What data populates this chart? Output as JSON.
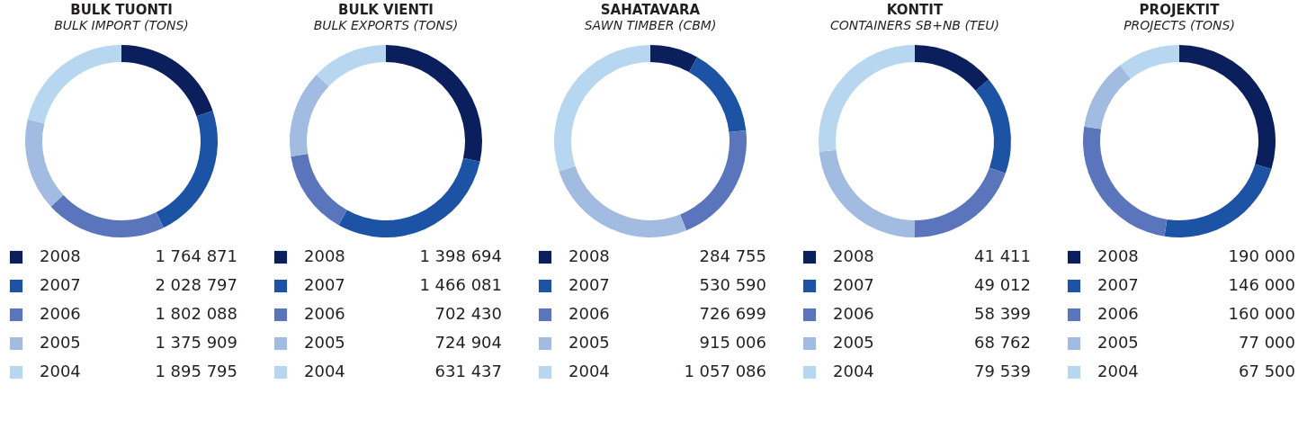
{
  "chart_data": [
    {
      "type": "donut",
      "title": "BULK TUONTI",
      "subtitle": "BULK IMPORT (TONS)",
      "categories": [
        "2008",
        "2007",
        "2006",
        "2005",
        "2004"
      ],
      "values": [
        1764871,
        2028797,
        1802088,
        1375909,
        1895795
      ],
      "value_labels": [
        "1 764 871",
        "2 028 797",
        "1 802 088",
        "1 375 909",
        "1 895 795"
      ],
      "colors": [
        "#0b1f5c",
        "#1c53a5",
        "#5a75bb",
        "#a2bbe0",
        "#b7d6ef"
      ],
      "legend": "bottom"
    },
    {
      "type": "donut",
      "title": "BULK VIENTI",
      "subtitle": "BULK EXPORTS (TONS)",
      "categories": [
        "2008",
        "2007",
        "2006",
        "2005",
        "2004"
      ],
      "values": [
        1398694,
        1466081,
        702430,
        724904,
        631437
      ],
      "value_labels": [
        "1 398 694",
        "1 466 081",
        "702 430",
        "724 904",
        "631 437"
      ],
      "colors": [
        "#0b1f5c",
        "#1c53a5",
        "#5a75bb",
        "#a2bbe0",
        "#b7d6ef"
      ],
      "legend": "bottom"
    },
    {
      "type": "donut",
      "title": "SAHATAVARA",
      "subtitle": "SAWN TIMBER (CBM)",
      "categories": [
        "2008",
        "2007",
        "2006",
        "2005",
        "2004"
      ],
      "values": [
        284755,
        530590,
        726699,
        915006,
        1057086
      ],
      "value_labels": [
        "284 755",
        "530 590",
        "726 699",
        "915 006",
        "1 057 086"
      ],
      "colors": [
        "#0b1f5c",
        "#1c53a5",
        "#5a75bb",
        "#a2bbe0",
        "#b7d6ef"
      ],
      "legend": "bottom"
    },
    {
      "type": "donut",
      "title": "KONTIT",
      "subtitle": "CONTAINERS SB+NB (TEU)",
      "categories": [
        "2008",
        "2007",
        "2006",
        "2005",
        "2004"
      ],
      "values": [
        41411,
        49012,
        58399,
        68762,
        79539
      ],
      "value_labels": [
        "41 411",
        "49 012",
        "58 399",
        "68 762",
        "79 539"
      ],
      "colors": [
        "#0b1f5c",
        "#1c53a5",
        "#5a75bb",
        "#a2bbe0",
        "#b7d6ef"
      ],
      "legend": "bottom"
    },
    {
      "type": "donut",
      "title": "PROJEKTIT",
      "subtitle": "PROJECTS (TONS)",
      "categories": [
        "2008",
        "2007",
        "2006",
        "2005",
        "2004"
      ],
      "values": [
        190000,
        146000,
        160000,
        77000,
        67500
      ],
      "value_labels": [
        "190 000",
        "146 000",
        "160 000",
        "77 000",
        "67 500"
      ],
      "colors": [
        "#0b1f5c",
        "#1c53a5",
        "#5a75bb",
        "#a2bbe0",
        "#b7d6ef"
      ],
      "legend": "bottom"
    }
  ]
}
